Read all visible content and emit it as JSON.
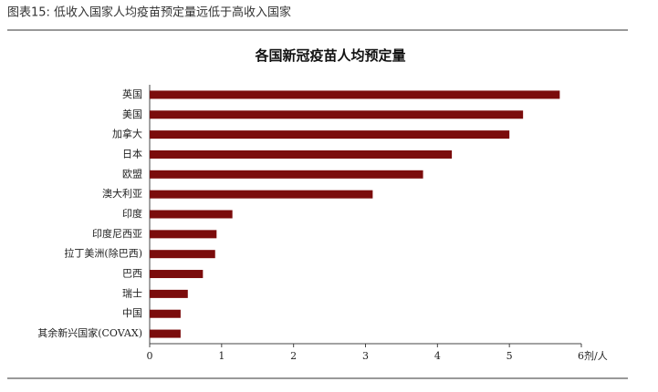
{
  "header": "图表15: 低收入国家人均疫苗预定量远低于高收入国家",
  "chart_data": {
    "type": "bar",
    "orientation": "horizontal",
    "title": "各国新冠疫苗人均预定量",
    "categories": [
      "英国",
      "美国",
      "加拿大",
      "日本",
      "欧盟",
      "澳大利亚",
      "印度",
      "印度尼西亚",
      "拉丁美洲(除巴西)",
      "巴西",
      "瑞士",
      "中国",
      "其余新兴国家(COVAX)"
    ],
    "values": [
      5.7,
      5.19,
      5.0,
      4.2,
      3.8,
      3.1,
      1.15,
      0.93,
      0.91,
      0.74,
      0.53,
      0.43,
      0.43
    ],
    "color": "#7b0c0c",
    "xlim": [
      0,
      6
    ],
    "xticks": [
      0,
      1,
      2,
      3,
      4,
      5,
      {
        "value": 6,
        "label": "6剂/人"
      }
    ],
    "grid": false
  }
}
